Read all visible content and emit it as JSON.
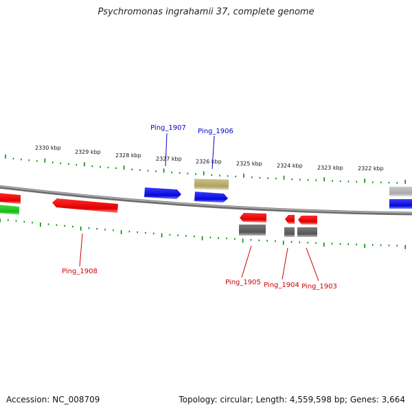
{
  "title": "Psychromonas ingrahamii 37, complete genome",
  "footer": {
    "accession": "Accession: NC_008709",
    "summary": "Topology: circular; Length: 4,559,598 bp; Genes: 3,664"
  },
  "scale_labels": [
    "2330 kbp",
    "2329 kbp",
    "2328 kbp",
    "2327 kbp",
    "2326 kbp",
    "2325 kbp",
    "2324 kbp",
    "2323 kbp",
    "2322 kbp"
  ],
  "gene_labels": [
    {
      "name": "Ping_1907",
      "strand": "forward"
    },
    {
      "name": "Ping_1906",
      "strand": "forward"
    },
    {
      "name": "Ping_1908",
      "strand": "reverse"
    },
    {
      "name": "Ping_1905",
      "strand": "reverse"
    },
    {
      "name": "Ping_1904",
      "strand": "reverse"
    },
    {
      "name": "Ping_1903",
      "strand": "reverse"
    }
  ],
  "colors": {
    "forward_gene": "#0a10e0",
    "reverse_gene": "#ee0808",
    "rna_gene": "#22cc22",
    "pseudo_olive": "#b8b070",
    "gray_feature": "#666666",
    "light_gray_feature": "#bbbbbb",
    "tick": "#008800",
    "backbone": "#888888",
    "forward_label": "#0000cc",
    "reverse_label": "#cc0000"
  }
}
